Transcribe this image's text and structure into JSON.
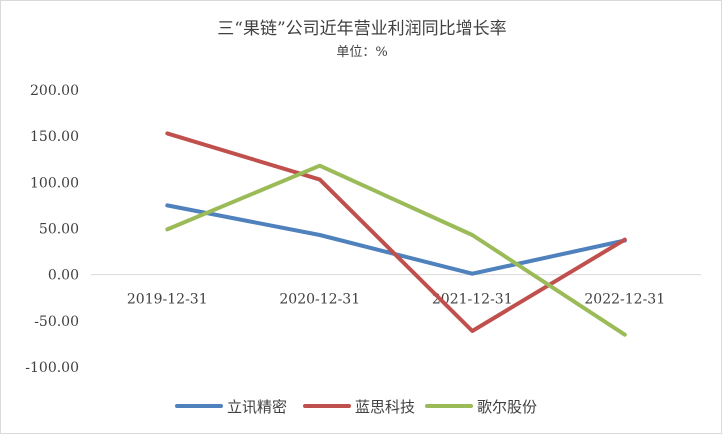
{
  "chart_data": {
    "type": "line",
    "title": "三“果链”公司近年营业利润同比增长率",
    "subtitle": "单位：%",
    "categories": [
      "2019-12-31",
      "2020-12-31",
      "2021-12-31",
      "2022-12-31"
    ],
    "ylim": [
      -100,
      200
    ],
    "yticks": [
      "200.00",
      "150.00",
      "100.00",
      "50.00",
      "0.00",
      "-50.00",
      "-100.00"
    ],
    "ytick_values": [
      200,
      150,
      100,
      50,
      0,
      -50,
      -100
    ],
    "grid": false,
    "legend_position": "bottom",
    "series": [
      {
        "name": "立讯精密",
        "color": "#4f81bd",
        "values": [
          75,
          43,
          1,
          37
        ]
      },
      {
        "name": "蓝思科技",
        "color": "#c0504d",
        "values": [
          153,
          103,
          -61,
          38
        ]
      },
      {
        "name": "歌尔股份",
        "color": "#9bbb59",
        "values": [
          49,
          118,
          43,
          -65
        ]
      }
    ]
  }
}
